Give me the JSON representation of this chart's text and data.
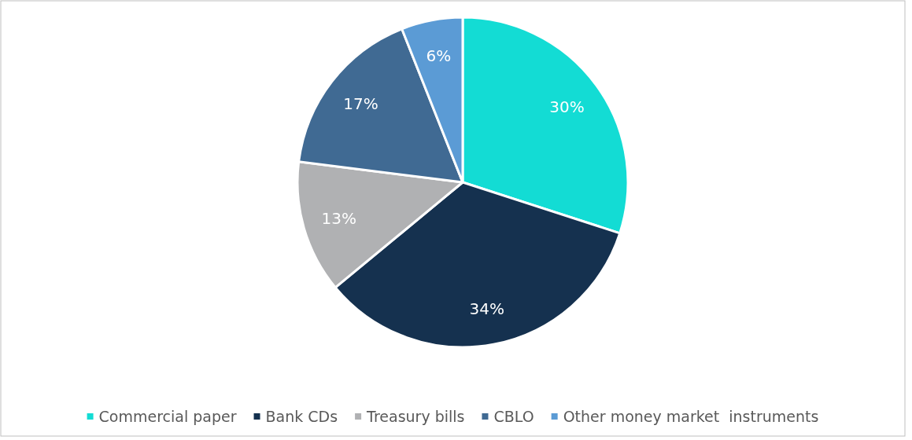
{
  "chart_data": {
    "type": "pie",
    "categories": [
      "Commercial paper",
      "Bank CDs",
      "Treasury bills",
      "CBLO",
      "Other money market  instruments"
    ],
    "values": [
      30,
      34,
      13,
      17,
      6
    ],
    "colors": [
      "#13dcd4",
      "#15314f",
      "#b0b1b3",
      "#406a93",
      "#5b9bd5"
    ],
    "value_labels": [
      "30%",
      "34%",
      "13%",
      "17%",
      "6%"
    ],
    "legend": "bottom"
  }
}
